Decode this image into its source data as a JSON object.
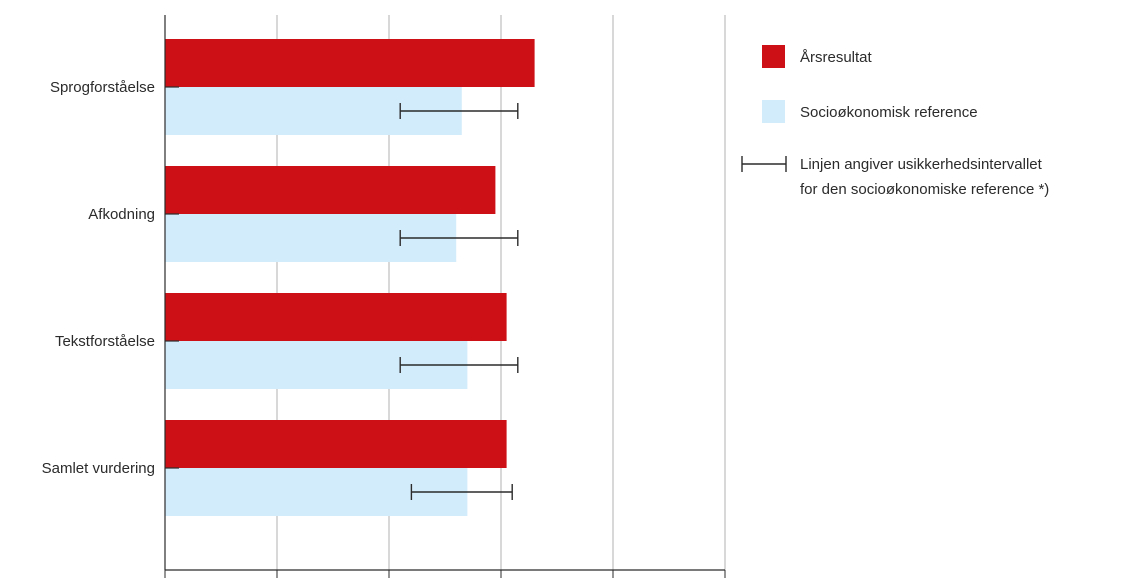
{
  "chart_data": {
    "type": "bar",
    "orientation": "horizontal",
    "categories": [
      "Sprogforståelse",
      "Afkodning",
      "Tekstforståelse",
      "Samlet vurdering"
    ],
    "series": [
      {
        "name": "Årsresultat",
        "values": [
          66,
          59,
          61,
          61
        ],
        "color": "#cc1016"
      },
      {
        "name": "Socioøkonomisk reference",
        "values": [
          53,
          52,
          54,
          54
        ],
        "color": "#d3ecfb",
        "interval_low": [
          42,
          42,
          42,
          44
        ],
        "interval_high": [
          63,
          63,
          63,
          62
        ]
      }
    ],
    "xlim": [
      0,
      100
    ],
    "xticks": [
      "0",
      "20",
      "40",
      "60",
      "80",
      "100"
    ],
    "grid": true,
    "legend_position": "right",
    "legend": [
      {
        "label": "Årsresultat",
        "kind": "swatch",
        "color": "#cc1016"
      },
      {
        "label": "Socioøkonomisk reference",
        "kind": "swatch",
        "color": "#d3ecfb"
      },
      {
        "label": [
          "Linjen angiver usikkerhedsintervallet",
          "for den socioøkonomiske reference *)"
        ],
        "kind": "errorbar"
      }
    ]
  }
}
